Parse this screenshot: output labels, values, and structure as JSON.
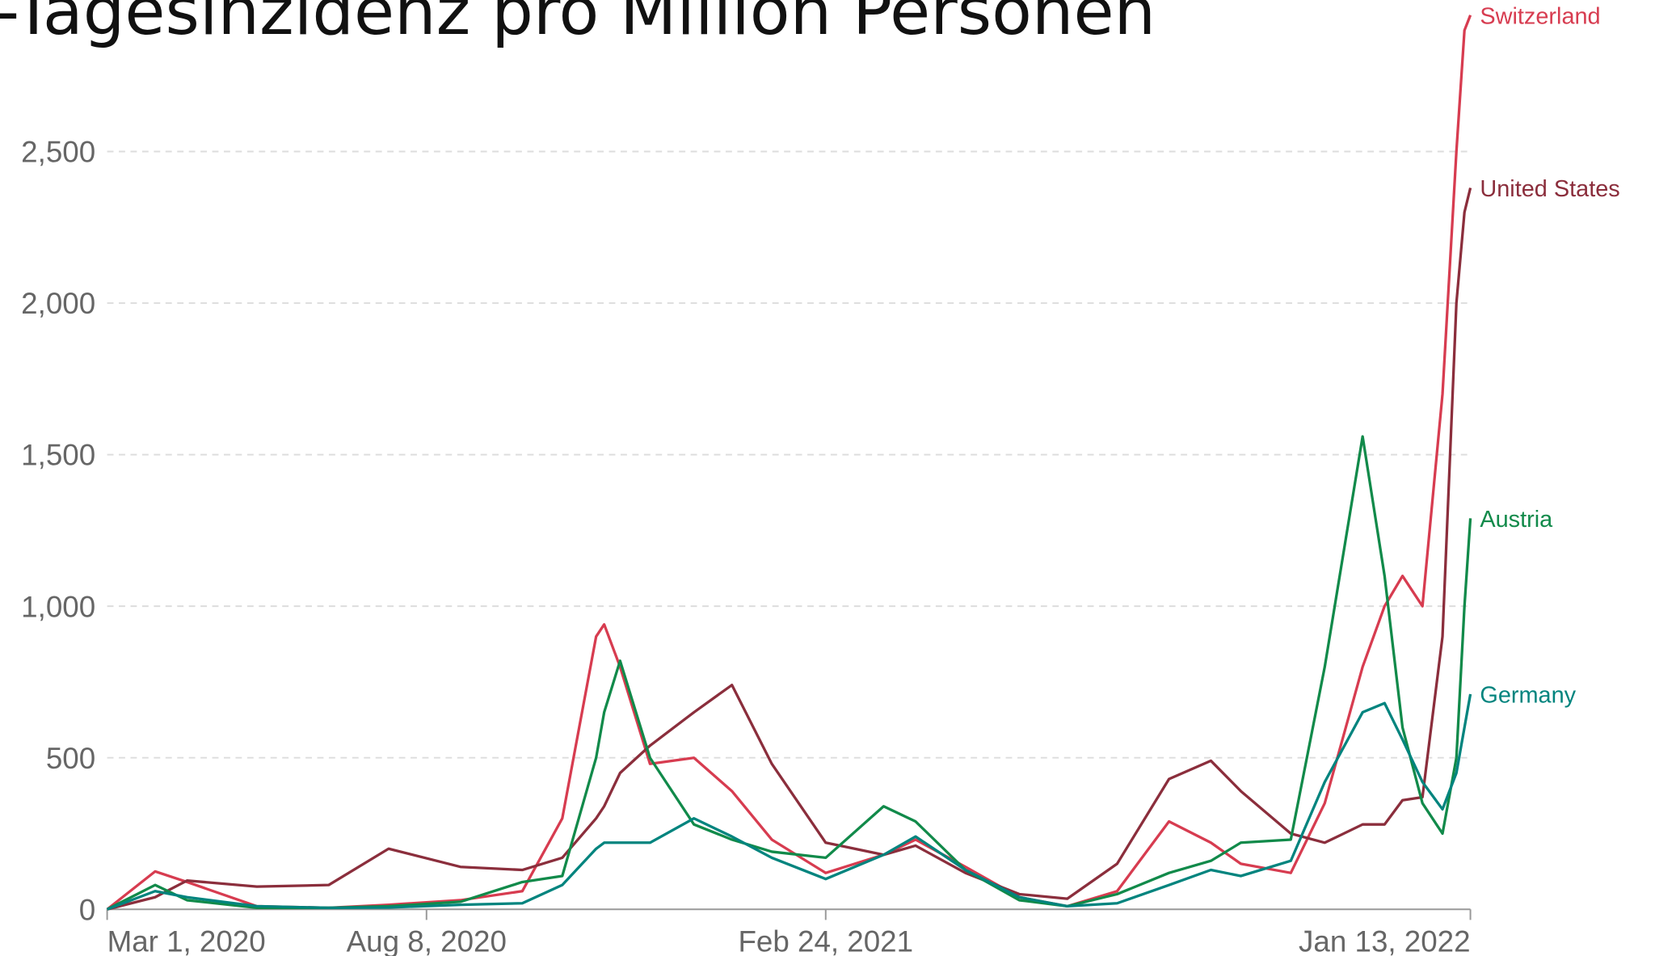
{
  "chart_data": {
    "type": "line",
    "title": "-Tagesinzidenz pro Million Personen",
    "x": [
      "2020-03-01",
      "2020-03-25",
      "2020-04-10",
      "2020-05-15",
      "2020-06-20",
      "2020-07-20",
      "2020-08-25",
      "2020-09-25",
      "2020-10-15",
      "2020-11-01",
      "2020-11-05",
      "2020-11-13",
      "2020-11-28",
      "2020-12-20",
      "2021-01-08",
      "2021-01-28",
      "2021-02-24",
      "2021-03-25",
      "2021-04-10",
      "2021-05-05",
      "2021-06-01",
      "2021-06-25",
      "2021-07-20",
      "2021-08-15",
      "2021-09-05",
      "2021-09-20",
      "2021-10-15",
      "2021-11-01",
      "2021-11-20",
      "2021-12-01",
      "2021-12-10",
      "2021-12-20",
      "2021-12-30",
      "2022-01-06",
      "2022-01-10",
      "2022-01-13"
    ],
    "series": [
      {
        "name": "Switzerland",
        "color": "#d73c50",
        "values": [
          0,
          125,
          90,
          10,
          5,
          15,
          30,
          60,
          300,
          900,
          940,
          800,
          480,
          500,
          390,
          230,
          120,
          180,
          230,
          140,
          40,
          10,
          60,
          290,
          220,
          150,
          120,
          350,
          800,
          1000,
          1100,
          1000,
          1700,
          2500,
          2900,
          2950
        ]
      },
      {
        "name": "United States",
        "color": "#8b2e3c",
        "values": [
          0,
          40,
          95,
          75,
          80,
          200,
          140,
          130,
          170,
          300,
          340,
          450,
          540,
          650,
          740,
          480,
          220,
          180,
          210,
          120,
          50,
          35,
          150,
          430,
          490,
          390,
          250,
          220,
          280,
          280,
          360,
          370,
          900,
          2000,
          2300,
          2380
        ]
      },
      {
        "name": "Austria",
        "color": "#118a4a",
        "values": [
          0,
          80,
          30,
          5,
          5,
          10,
          25,
          90,
          110,
          500,
          650,
          820,
          500,
          280,
          230,
          190,
          170,
          340,
          290,
          130,
          30,
          10,
          50,
          120,
          160,
          220,
          230,
          800,
          1560,
          1100,
          600,
          350,
          250,
          500,
          1000,
          1290
        ]
      },
      {
        "name": "Germany",
        "color": "#00847e",
        "values": [
          0,
          60,
          40,
          10,
          5,
          6,
          15,
          20,
          80,
          200,
          220,
          220,
          220,
          300,
          240,
          170,
          100,
          180,
          240,
          130,
          40,
          10,
          20,
          80,
          130,
          110,
          160,
          420,
          650,
          680,
          560,
          420,
          330,
          450,
          600,
          710
        ]
      }
    ],
    "xlim": [
      "2020-03-01",
      "2022-01-13"
    ],
    "xticks": [
      {
        "value": "2020-03-01",
        "label": "Mar 1, 2020"
      },
      {
        "value": "2020-08-08",
        "label": "Aug 8, 2020"
      },
      {
        "value": "2021-02-24",
        "label": "Feb 24, 2021"
      },
      {
        "value": "2022-01-13",
        "label": "Jan 13, 2022"
      }
    ],
    "ylim": [
      0,
      3000
    ],
    "yticks": [
      0,
      500,
      {
        "value": 1000,
        "label": "1,000"
      },
      {
        "value": 1500,
        "label": "1,500"
      },
      {
        "value": 2000,
        "label": "2,000"
      },
      {
        "value": 2500,
        "label": "2,500"
      }
    ],
    "grid": true
  }
}
